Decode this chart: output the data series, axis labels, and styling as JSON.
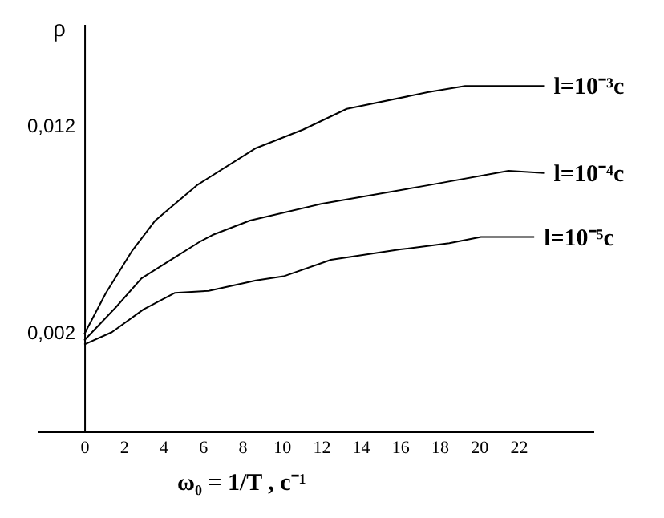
{
  "chart_data": {
    "type": "line",
    "xlabel": "ω₀ = 1/T , c⁻¹",
    "ylabel": "ρ",
    "xlim": [
      -2.4,
      25.8
    ],
    "ylim": [
      -0.0028,
      0.0169
    ],
    "xticks": [
      0,
      2,
      4,
      6,
      8,
      10,
      12,
      14,
      16,
      18,
      20,
      22
    ],
    "yticks": [
      {
        "value": 0.002,
        "label": "0,002"
      },
      {
        "value": 0.012,
        "label": "0,012"
      }
    ],
    "grid": false,
    "marker": "none",
    "line_style": "solid",
    "series": [
      {
        "name": "l=10⁻³c",
        "color": "#000000",
        "x": [
          0,
          1.1,
          2.4,
          3.6,
          5.7,
          8.7,
          11.1,
          13.3,
          17.4,
          19.3,
          23.3
        ],
        "values": [
          0.0019,
          0.0039,
          0.0059,
          0.0074,
          0.0091,
          0.0109,
          0.0118,
          0.0128,
          0.0136,
          0.0139,
          0.0139
        ]
      },
      {
        "name": "l=10⁻⁴c",
        "color": "#000000",
        "x": [
          0,
          1.6,
          2.9,
          4.4,
          5.9,
          6.5,
          8.4,
          12,
          17.4,
          21.5,
          23.3
        ],
        "values": [
          0.0016,
          0.0032,
          0.0046,
          0.0055,
          0.0064,
          0.0067,
          0.0074,
          0.0082,
          0.0091,
          0.0098,
          0.0097
        ]
      },
      {
        "name": "l=10⁻⁵c",
        "color": "#000000",
        "x": [
          0,
          1.4,
          3,
          4.6,
          6.3,
          8.7,
          10.1,
          12.5,
          16,
          18.5,
          20.1,
          22.8
        ],
        "values": [
          0.0014,
          0.002,
          0.0031,
          0.0039,
          0.004,
          0.0045,
          0.0047,
          0.0055,
          0.006,
          0.0063,
          0.0066,
          0.0066
        ]
      }
    ]
  }
}
